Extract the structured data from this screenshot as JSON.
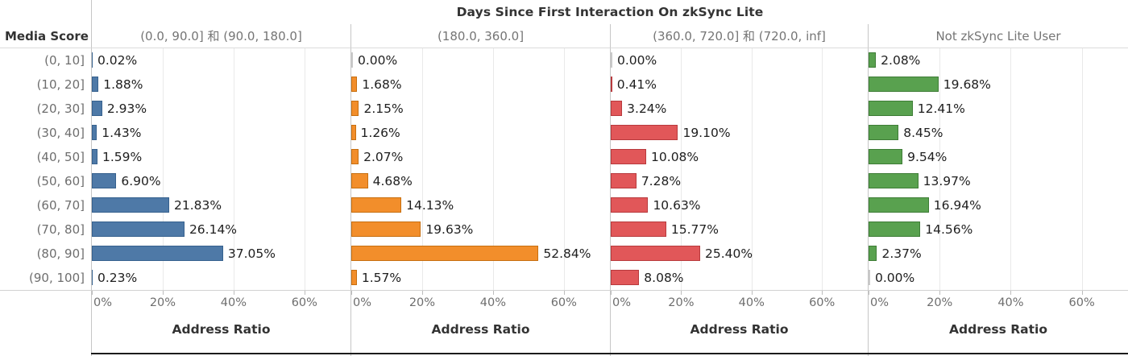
{
  "title": "Days Since First Interaction On zkSync Lite",
  "row_axis_title": "Media Score",
  "x_axis_title": "Address Ratio",
  "x_tick_labels": [
    "0%",
    "20%",
    "40%",
    "60%"
  ],
  "x_tick_values": [
    0,
    20,
    40,
    60
  ],
  "x_max": 73,
  "colors": {
    "bars": [
      {
        "fill": "#4e79a7",
        "stroke": "#36618e"
      },
      {
        "fill": "#f28e2b",
        "stroke": "#c76f10"
      },
      {
        "fill": "#e15759",
        "stroke": "#b83a3d"
      },
      {
        "fill": "#59a14f",
        "stroke": "#3e7d36"
      }
    ],
    "zero_bar": "#c9c9c9",
    "separator": "#c6c6c6",
    "gridline": "#e9e9e9",
    "header_rule": "#dcdcdc",
    "axis_rule": "#d2d2d2",
    "bottom_rule": "#1b1b1b",
    "title_text": "#333333",
    "muted_text": "#6e6e6e",
    "header_text": "#757575",
    "value_text": "#202020"
  },
  "chart_data": {
    "type": "bar",
    "orientation": "horizontal",
    "title": "Days Since First Interaction On zkSync Lite",
    "xlabel": "Address Ratio",
    "ylabel": "Media Score",
    "xlim": [
      0,
      73
    ],
    "x_tick_labels": [
      "0%",
      "20%",
      "40%",
      "60%"
    ],
    "grid": true,
    "legend": "none",
    "value_format": "two-decimal percent labels at bar ends",
    "categories": [
      "(0, 10]",
      "(10, 20]",
      "(20, 30]",
      "(30, 40]",
      "(40, 50]",
      "(50, 60]",
      "(60, 70]",
      "(70, 80]",
      "(80, 90]",
      "(90, 100]"
    ],
    "series": [
      {
        "name": "(0.0, 90.0] 和 (90.0, 180.0]",
        "values": [
          0.02,
          1.88,
          2.93,
          1.43,
          1.59,
          6.9,
          21.83,
          26.14,
          37.05,
          0.23
        ]
      },
      {
        "name": "(180.0, 360.0]",
        "values": [
          0.0,
          1.68,
          2.15,
          1.26,
          2.07,
          4.68,
          14.13,
          19.63,
          52.84,
          1.57
        ]
      },
      {
        "name": "(360.0, 720.0] 和 (720.0, inf]",
        "values": [
          0.0,
          0.41,
          3.24,
          19.1,
          10.08,
          7.28,
          10.63,
          15.77,
          25.4,
          8.08
        ]
      },
      {
        "name": "Not zkSync Lite User",
        "values": [
          2.08,
          19.68,
          12.41,
          8.45,
          9.54,
          13.97,
          16.94,
          14.56,
          2.37,
          0.0
        ]
      }
    ]
  }
}
